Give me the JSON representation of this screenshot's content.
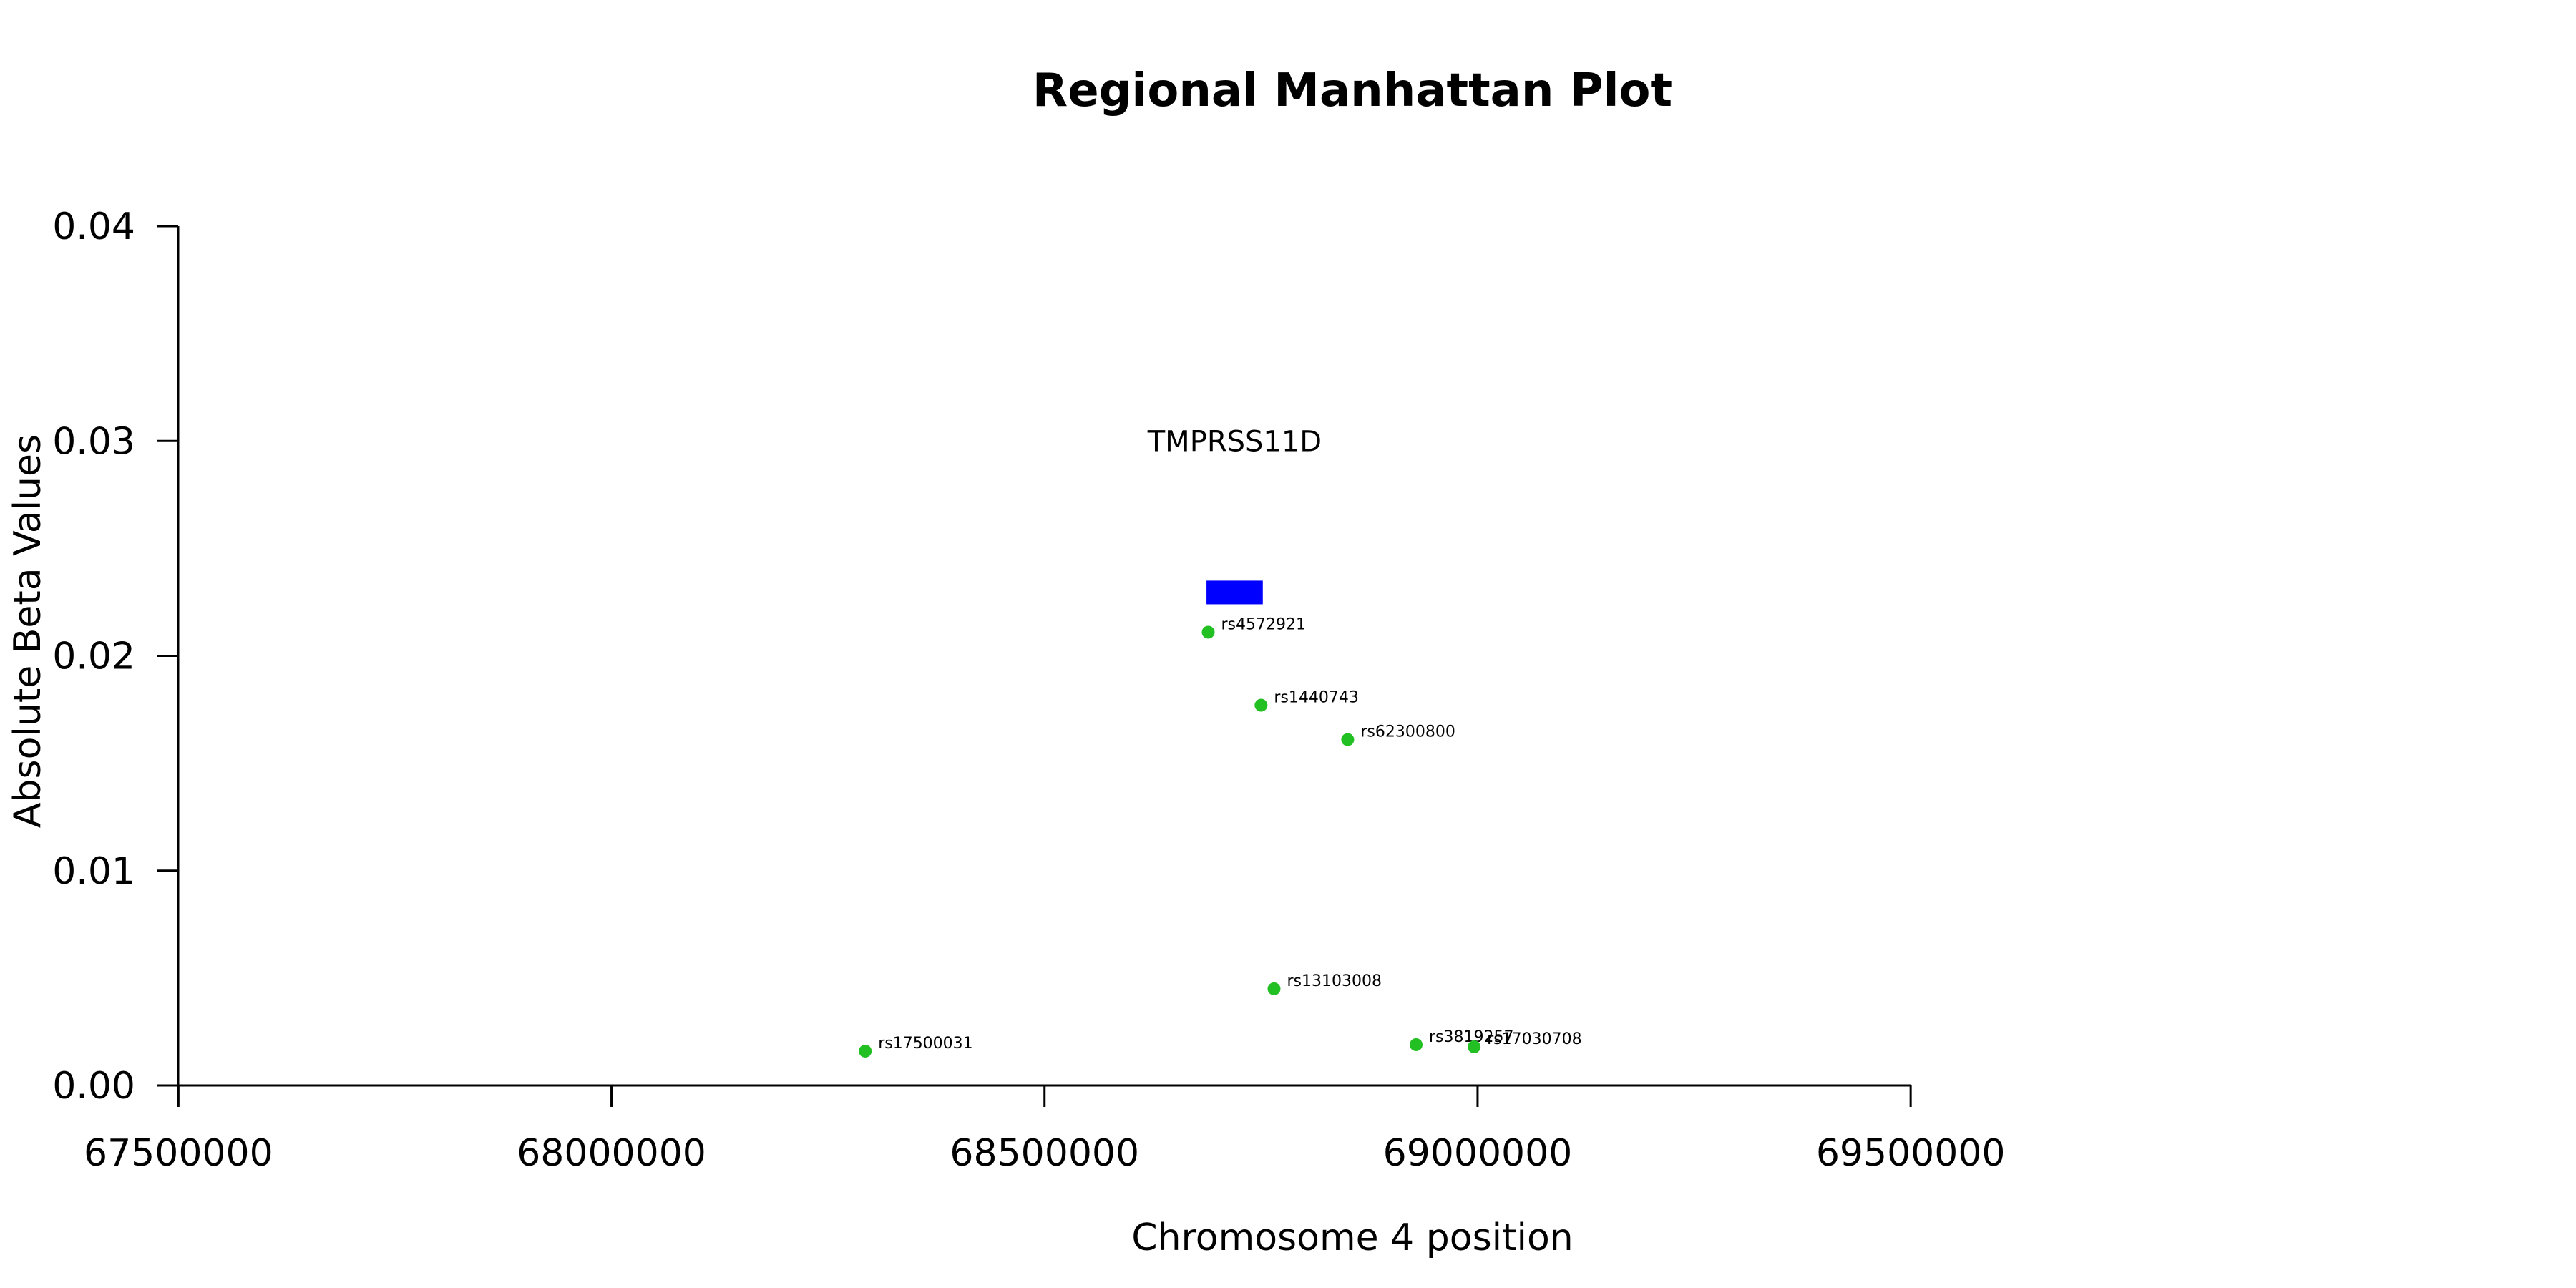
{
  "chart_data": {
    "type": "scatter",
    "title": "Regional Manhattan Plot",
    "xlabel": "Chromosome 4 position",
    "ylabel": "Absolute Beta Values",
    "xlim": [
      67294000,
      70293000
    ],
    "ylim": [
      0,
      0.04
    ],
    "x_ticks": [
      67500000,
      68000000,
      68500000,
      69000000,
      69500000
    ],
    "x_tick_labels": [
      "67500000",
      "68000000",
      "68500000",
      "69000000",
      "69500000"
    ],
    "y_ticks": [
      0,
      0.01,
      0.02,
      0.03,
      0.04
    ],
    "y_tick_labels": [
      "0.00",
      "0.01",
      "0.02",
      "0.03",
      "0.04"
    ],
    "point_color": "#22c022",
    "gene_color": "#0000ff",
    "points": [
      {
        "label": "rs17500031",
        "x": 68293000,
        "y": 0.0016
      },
      {
        "label": "rs4572921",
        "x": 68689000,
        "y": 0.0211
      },
      {
        "label": "rs1440743",
        "x": 68750000,
        "y": 0.0177
      },
      {
        "label": "rs13103008",
        "x": 68765000,
        "y": 0.0045
      },
      {
        "label": "rs62300800",
        "x": 68850000,
        "y": 0.0161
      },
      {
        "label": "rs3819257",
        "x": 68929000,
        "y": 0.0019
      },
      {
        "label": "rs17030708",
        "x": 68996000,
        "y": 0.0018
      }
    ],
    "genes": [
      {
        "name": "TMPRSS11D",
        "start": 68687000,
        "end": 68752000,
        "y_low": 0.0224,
        "y_high": 0.0235
      }
    ],
    "grid": false,
    "legend": "none"
  }
}
